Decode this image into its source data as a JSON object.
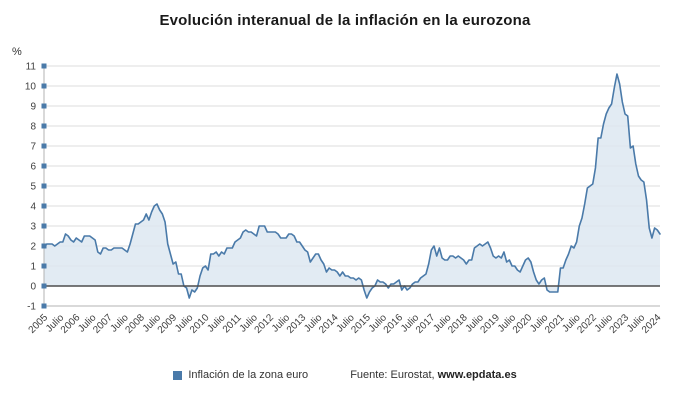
{
  "title": "Evolución interanual de la inflación en la eurozona",
  "colors": {
    "line": "#4a7aa9",
    "fill": "#dde7f1",
    "grid": "#dcdcdc",
    "zero_line": "#4d4d4d",
    "axis": "#b3b3b3",
    "tick_text": "#404040"
  },
  "legend": {
    "series_label": "Inflación de la zona euro",
    "source_prefix": "Fuente: Eurostat, ",
    "source_site": "www.epdata.es"
  },
  "chart_data": {
    "type": "area",
    "title": "Evolución interanual de la inflación en la eurozona",
    "xlabel": "",
    "ylabel": "%",
    "ylim": [
      -1,
      11
    ],
    "y_ticks": [
      -1,
      0,
      1,
      2,
      3,
      4,
      5,
      6,
      7,
      8,
      9,
      10,
      11
    ],
    "grid": true,
    "legend_position": "bottom",
    "x_start": "2005-01",
    "frequency": "monthly",
    "x_tick_every_months": 6,
    "x_tick_labels": [
      "2005",
      "Julio",
      "2006",
      "Julio",
      "2007",
      "Julio",
      "2008",
      "Julio",
      "2009",
      "Julio",
      "2010",
      "Julio",
      "2011",
      "Julio",
      "2012",
      "Julio",
      "2013",
      "Julio",
      "2014",
      "Julio",
      "2015",
      "Julio",
      "2016",
      "Julio",
      "2017",
      "Julio",
      "2018",
      "Julio",
      "2019",
      "Julio",
      "2020",
      "Julio",
      "2021",
      "Julio",
      "2022",
      "Julio",
      "2023",
      "Julio",
      "2024"
    ],
    "series": [
      {
        "name": "Inflación de la zona euro",
        "color": "#4a7aa9",
        "fill": "#dde7f1",
        "values": [
          1.9,
          2.1,
          2.1,
          2.1,
          2.0,
          2.1,
          2.2,
          2.2,
          2.6,
          2.5,
          2.3,
          2.2,
          2.4,
          2.3,
          2.2,
          2.5,
          2.5,
          2.5,
          2.4,
          2.3,
          1.7,
          1.6,
          1.9,
          1.9,
          1.8,
          1.8,
          1.9,
          1.9,
          1.9,
          1.9,
          1.8,
          1.7,
          2.1,
          2.6,
          3.1,
          3.1,
          3.2,
          3.3,
          3.6,
          3.3,
          3.7,
          4.0,
          4.1,
          3.8,
          3.6,
          3.2,
          2.1,
          1.6,
          1.1,
          1.2,
          0.6,
          0.6,
          0.0,
          -0.1,
          -0.6,
          -0.2,
          -0.3,
          -0.1,
          0.5,
          0.9,
          1.0,
          0.8,
          1.6,
          1.6,
          1.7,
          1.5,
          1.7,
          1.6,
          1.9,
          1.9,
          1.9,
          2.2,
          2.3,
          2.4,
          2.7,
          2.8,
          2.7,
          2.7,
          2.6,
          2.5,
          3.0,
          3.0,
          3.0,
          2.7,
          2.7,
          2.7,
          2.7,
          2.6,
          2.4,
          2.4,
          2.4,
          2.6,
          2.6,
          2.5,
          2.2,
          2.2,
          2.0,
          1.8,
          1.7,
          1.2,
          1.4,
          1.6,
          1.6,
          1.3,
          1.1,
          0.7,
          0.9,
          0.8,
          0.8,
          0.7,
          0.5,
          0.7,
          0.5,
          0.5,
          0.4,
          0.4,
          0.3,
          0.4,
          0.3,
          -0.2,
          -0.6,
          -0.3,
          -0.1,
          0.0,
          0.3,
          0.2,
          0.2,
          0.1,
          -0.1,
          0.1,
          0.1,
          0.2,
          0.3,
          -0.2,
          0.0,
          -0.2,
          -0.1,
          0.1,
          0.2,
          0.2,
          0.4,
          0.5,
          0.6,
          1.1,
          1.8,
          2.0,
          1.5,
          1.9,
          1.4,
          1.3,
          1.3,
          1.5,
          1.5,
          1.4,
          1.5,
          1.4,
          1.3,
          1.1,
          1.3,
          1.3,
          1.9,
          2.0,
          2.1,
          2.0,
          2.1,
          2.2,
          1.9,
          1.5,
          1.4,
          1.5,
          1.4,
          1.7,
          1.2,
          1.3,
          1.0,
          1.0,
          0.8,
          0.7,
          1.0,
          1.3,
          1.4,
          1.2,
          0.7,
          0.3,
          0.1,
          0.3,
          0.4,
          -0.2,
          -0.3,
          -0.3,
          -0.3,
          -0.3,
          0.9,
          0.9,
          1.3,
          1.6,
          2.0,
          1.9,
          2.2,
          3.0,
          3.4,
          4.1,
          4.9,
          5.0,
          5.1,
          5.9,
          7.4,
          7.4,
          8.1,
          8.6,
          8.9,
          9.1,
          9.9,
          10.6,
          10.1,
          9.2,
          8.6,
          8.5,
          6.9,
          7.0,
          6.1,
          5.5,
          5.3,
          5.2,
          4.3,
          2.9,
          2.4,
          2.9,
          2.8,
          2.6
        ]
      }
    ]
  }
}
